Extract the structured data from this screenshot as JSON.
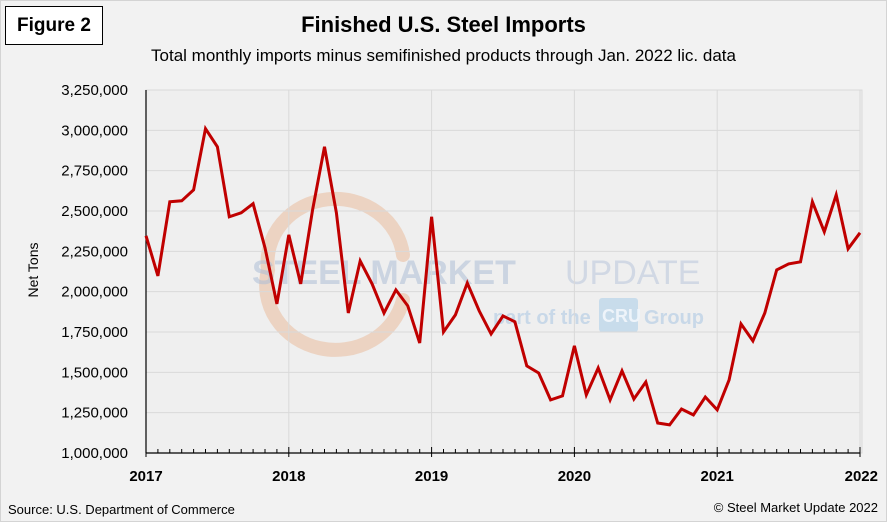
{
  "figure_label": "Figure 2",
  "source": "Source: U.S. Department of Commerce",
  "copyright": "© Steel Market Update 2022",
  "watermark": {
    "brand_bold": "STEEL MARKET",
    "brand_light": "UPDATE",
    "sub_prefix": "part of the",
    "sub_badge": "CRU",
    "sub_suffix": "Group"
  },
  "colors": {
    "line": "#c00000",
    "grid": "#d9d9d9",
    "plot_bg": "#efefef"
  },
  "chart_data": {
    "type": "line",
    "title": "Finished U.S. Steel Imports",
    "subtitle": "Total monthly imports minus semifinished  products through Jan. 2022 lic. data",
    "xlabel": "",
    "ylabel": "Net Tons",
    "ylim": [
      1000000,
      3250000
    ],
    "xlim": [
      "2017-01",
      "2022-01"
    ],
    "yticks": [
      1000000,
      1250000,
      1500000,
      1750000,
      2000000,
      2250000,
      2500000,
      2750000,
      3000000,
      3250000
    ],
    "ytick_labels": [
      "1,000,000",
      "1,250,000",
      "1,500,000",
      "1,750,000",
      "2,000,000",
      "2,250,000",
      "2,500,000",
      "2,750,000",
      "3,000,000",
      "3,250,000"
    ],
    "xtick_labels": [
      "2017",
      "2018",
      "2019",
      "2020",
      "2021",
      "2022"
    ],
    "grid": true,
    "legend": "none",
    "series": [
      {
        "name": "Finished steel imports",
        "x": [
          "2017-01",
          "2017-02",
          "2017-03",
          "2017-04",
          "2017-05",
          "2017-06",
          "2017-07",
          "2017-08",
          "2017-09",
          "2017-10",
          "2017-11",
          "2017-12",
          "2018-01",
          "2018-02",
          "2018-03",
          "2018-04",
          "2018-05",
          "2018-06",
          "2018-07",
          "2018-08",
          "2018-09",
          "2018-10",
          "2018-11",
          "2018-12",
          "2019-01",
          "2019-02",
          "2019-03",
          "2019-04",
          "2019-05",
          "2019-06",
          "2019-07",
          "2019-08",
          "2019-09",
          "2019-10",
          "2019-11",
          "2019-12",
          "2020-01",
          "2020-02",
          "2020-03",
          "2020-04",
          "2020-05",
          "2020-06",
          "2020-07",
          "2020-08",
          "2020-09",
          "2020-10",
          "2020-11",
          "2020-12",
          "2021-01",
          "2021-02",
          "2021-03",
          "2021-04",
          "2021-05",
          "2021-06",
          "2021-07",
          "2021-08",
          "2021-09",
          "2021-10",
          "2021-11",
          "2021-12",
          "2022-01"
        ],
        "values": [
          2346000,
          2098000,
          2557000,
          2563000,
          2631000,
          3010000,
          2898000,
          2464000,
          2489000,
          2545000,
          2272000,
          1924000,
          2352000,
          2048000,
          2508000,
          2898000,
          2489000,
          1868000,
          2191000,
          2048000,
          1868000,
          2011000,
          1912000,
          1682000,
          2464000,
          1750000,
          1856000,
          2054000,
          1881000,
          1738000,
          1850000,
          1813000,
          1540000,
          1496000,
          1329000,
          1354000,
          1664000,
          1360000,
          1527000,
          1329000,
          1509000,
          1335000,
          1440000,
          1186000,
          1174000,
          1273000,
          1236000,
          1347000,
          1267000,
          1453000,
          1800000,
          1695000,
          1868000,
          2135000,
          2172000,
          2185000,
          2557000,
          2371000,
          2600000,
          2266000,
          2365000
        ]
      }
    ]
  }
}
